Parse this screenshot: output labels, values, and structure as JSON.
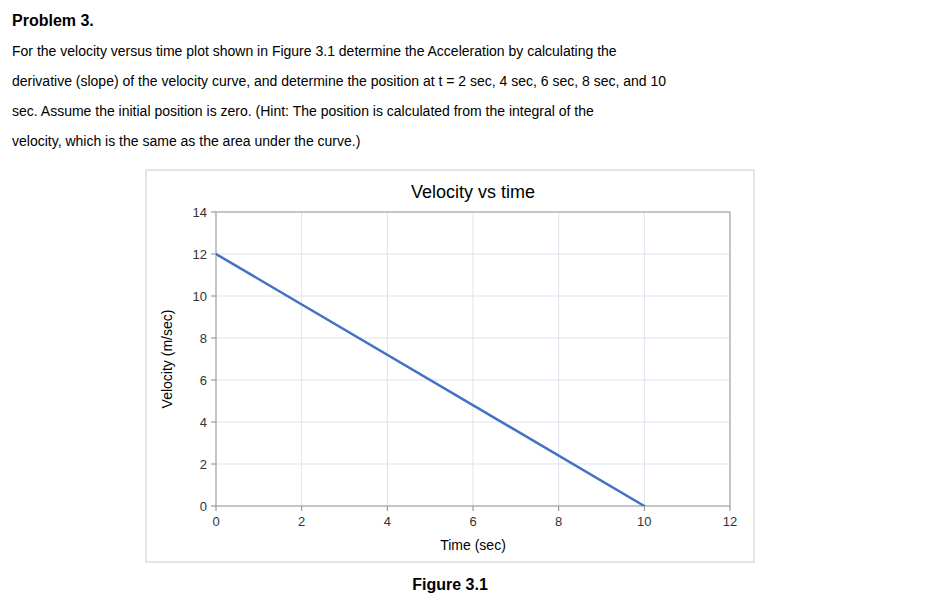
{
  "problem_title": "Problem 3.",
  "problem_text_lines": [
    "For the velocity versus time plot shown in Figure 3.1 determine the Acceleration by calculating the",
    "derivative (slope) of the velocity curve, and determine the position at t = 2 sec, 4 sec, 6 sec, 8 sec, and 10",
    "sec.  Assume the initial position is zero.  (Hint:  The position is calculated from the integral of the",
    "velocity, which is the same as the area under the curve.)"
  ],
  "figure_caption": "Figure 3.1",
  "chart_data": {
    "type": "line",
    "title": "Velocity vs time",
    "x_label": "Time (sec)",
    "y_label": "Velocity (m/sec)",
    "x": [
      0,
      10
    ],
    "values": [
      12,
      0
    ],
    "color": "#4472C4",
    "xlim": [
      0,
      12
    ],
    "ylim": [
      0,
      14
    ],
    "xticks": [
      0,
      2,
      4,
      6,
      8,
      10,
      12
    ],
    "yticks": [
      0,
      2,
      4,
      6,
      8,
      10,
      12,
      14
    ],
    "grid": true
  }
}
